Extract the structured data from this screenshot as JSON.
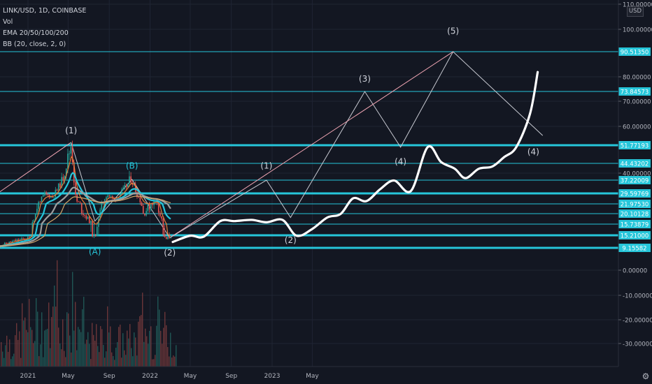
{
  "legend": {
    "symbol": "LINK/USD, 1D, COINBASE",
    "vol": "Vol",
    "ema": "EMA 20/50/100/200",
    "bb": "BB (20, close, 2, 0)"
  },
  "price_axis": {
    "currency": "USD",
    "ticks": [
      "110.00000",
      "100.00000",
      "80.00000",
      "70.00000",
      "60.00000",
      "40.00000",
      "0.00000",
      "-10.00000",
      "-20.00000",
      "-30.00000"
    ]
  },
  "time_axis": {
    "ticks": [
      "2021",
      "May",
      "Sep",
      "2022",
      "May",
      "Sep",
      "2023",
      "May"
    ]
  },
  "colors": {
    "background": "#131722",
    "cyan": "#26c6da",
    "up": "#26a69a",
    "down": "#ef5350",
    "projection": "#ffffff",
    "wave_line": "#c7c9d1",
    "trend_pink": "#f3a7b5"
  },
  "levels": [
    {
      "label": "90.51350",
      "price": 90.5135,
      "thick": false
    },
    {
      "label": "73.84573",
      "price": 73.84573,
      "thick": false
    },
    {
      "label": "51.77193",
      "price": 51.77193,
      "thick": true
    },
    {
      "label": "44.43202",
      "price": 44.43202,
      "thick": false
    },
    {
      "label": "37.22009",
      "price": 37.22009,
      "thick": false
    },
    {
      "label": "29.59769",
      "price": 29.59769,
      "thick": true
    },
    {
      "label": "21.97530",
      "price": 21.9753,
      "thick": false
    },
    {
      "label": "20.10128",
      "price": 20.10128,
      "thick": false
    },
    {
      "label": "15.73879",
      "price": 15.73879,
      "thick": false
    },
    {
      "label": "15.21000",
      "price": 15.21,
      "thick": true
    },
    {
      "label": "9.15582",
      "price": 9.15582,
      "thick": true
    }
  ],
  "wave_labels": [
    {
      "text": "(1)",
      "date": "2021-05-10",
      "price": 57,
      "color": "white"
    },
    {
      "text": "(B)",
      "date": "2021-11-08",
      "price": 42,
      "color": "cyan"
    },
    {
      "text": "(A)",
      "date": "2021-07-20",
      "price": 6.5,
      "color": "cyan"
    },
    {
      "text": "(2)",
      "date": "2022-03-01",
      "price": 6,
      "color": "white"
    },
    {
      "text": "(1)",
      "date": "2022-12-15",
      "price": 42,
      "color": "white"
    },
    {
      "text": "(2)",
      "date": "2023-02-25",
      "price": 11.5,
      "color": "white"
    },
    {
      "text": "(3)",
      "date": "2023-10-05",
      "price": 78,
      "color": "white"
    },
    {
      "text": "(4)",
      "date": "2024-01-20",
      "price": 44,
      "color": "white"
    },
    {
      "text": "(5)",
      "date": "2024-06-25",
      "price": 98,
      "color": "white"
    },
    {
      "text": "(4)",
      "date": "2025-02-20",
      "price": 48,
      "color": "white"
    }
  ],
  "chart_data": {
    "type": "line",
    "title": "LINK/USD, 1D, COINBASE",
    "ylim": [
      -37,
      110
    ],
    "y_ticks": [
      110,
      100,
      80,
      70,
      60,
      40,
      0,
      -10,
      -20,
      -30
    ],
    "x_ticks": [
      "2021",
      "May",
      "Sep",
      "2022",
      "May",
      "Sep",
      "2023",
      "May"
    ],
    "series": [
      {
        "name": "",
        "values": [
          {
            "x": "2020-10-05",
            "y": 10
          },
          {
            "x": "2020-11-20",
            "y": 12.5
          },
          {
            "x": "2021-01-05",
            "y": 14
          },
          {
            "x": "2021-02-20",
            "y": 29
          },
          {
            "x": "2021-03-15",
            "y": 27
          },
          {
            "x": "2021-04-15",
            "y": 38
          },
          {
            "x": "2021-05-10",
            "y": 52.5
          },
          {
            "x": "2021-05-25",
            "y": 24
          },
          {
            "x": "2021-07-20",
            "y": 14
          },
          {
            "x": "2021-08-25",
            "y": 29
          },
          {
            "x": "2021-09-15",
            "y": 25
          },
          {
            "x": "2021-10-15",
            "y": 32
          },
          {
            "x": "2021-11-05",
            "y": 38
          },
          {
            "x": "2021-12-10",
            "y": 20
          },
          {
            "x": "2022-01-20",
            "y": 24
          },
          {
            "x": "2022-02-15",
            "y": 13
          },
          {
            "x": "2022-03-05",
            "y": 15
          }
        ]
      },
      {
        "name": "",
        "values": [
          {
            "x": "2022-03-10",
            "y": 12
          },
          {
            "x": "2022-05-01",
            "y": 15
          },
          {
            "x": "2022-06-10",
            "y": 14.5
          },
          {
            "x": "2022-07-30",
            "y": 17
          },
          {
            "x": "2022-09-10",
            "y": 17
          },
          {
            "x": "2022-11-01",
            "y": 17.5
          },
          {
            "x": "2022-12-15",
            "y": 16.5
          },
          {
            "x": "2023-02-01",
            "y": 17.5
          },
          {
            "x": "2023-03-15",
            "y": 15
          },
          {
            "x": "2023-04-30",
            "y": 15.5
          },
          {
            "x": "2023-06-15",
            "y": 18.5
          },
          {
            "x": "2023-07-25",
            "y": 20
          },
          {
            "x": "2023-08-31",
            "y": 26
          },
          {
            "x": "2023-10-10",
            "y": 24
          },
          {
            "x": "2023-11-20",
            "y": 32
          },
          {
            "x": "2024-01-01",
            "y": 37
          },
          {
            "x": "2024-02-20",
            "y": 31
          },
          {
            "x": "2024-04-10",
            "y": 51
          },
          {
            "x": "2024-05-20",
            "y": 45
          },
          {
            "x": "2024-06-30",
            "y": 42
          },
          {
            "x": "2024-08-01",
            "y": 38
          },
          {
            "x": "2024-09-10",
            "y": 42
          },
          {
            "x": "2024-10-20",
            "y": 43
          },
          {
            "x": "2024-11-25",
            "y": 47
          },
          {
            "x": "2024-12-31",
            "y": 51
          },
          {
            "x": "2025-02-10",
            "y": 65
          },
          {
            "x": "2025-03-05",
            "y": 82
          }
        ]
      }
    ]
  }
}
